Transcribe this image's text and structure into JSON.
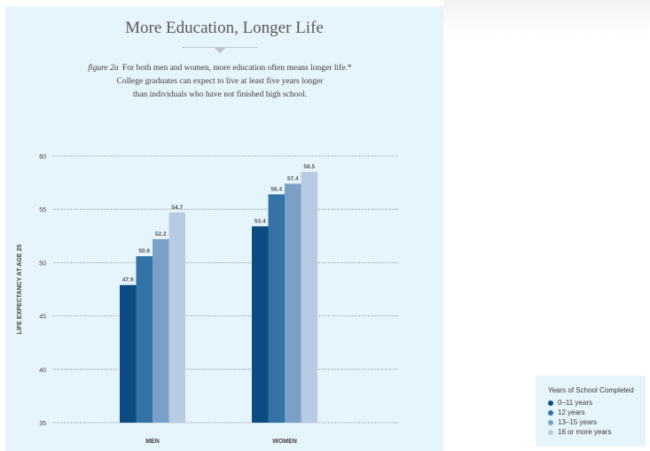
{
  "page": {
    "title": "More Education, Longer Life",
    "caption_figure_label": "figure 2a",
    "caption_lines": [
      "For both men and women, more education often means longer life.*",
      "College graduates can expect to live at least five years longer",
      "than individuals who have not finished high school."
    ],
    "panel_color": "#e6f4fb"
  },
  "chart_data": {
    "type": "bar",
    "title": "More Education, Longer Life",
    "xlabel": "",
    "ylabel": "LIFE EXPECTANCY AT AGE 25",
    "ylim": [
      35,
      60
    ],
    "yticks": [
      35,
      40,
      45,
      50,
      55,
      60
    ],
    "categories": [
      "MEN",
      "WOMEN"
    ],
    "grid": true,
    "legend_title": "Years of School Completed",
    "legend_position": "bottom-right",
    "series": [
      {
        "name": "0–11 years",
        "color": "#0c4c82",
        "values": [
          47.9,
          53.4
        ]
      },
      {
        "name": "12 years",
        "color": "#3473a6",
        "values": [
          50.6,
          56.4
        ]
      },
      {
        "name": "13–15 years",
        "color": "#7aa0c8",
        "values": [
          52.2,
          57.4
        ]
      },
      {
        "name": "16 or more years",
        "color": "#b9cbe3",
        "values": [
          54.7,
          58.5
        ]
      }
    ],
    "value_labels": [
      [
        "47.9",
        "53.4"
      ],
      [
        "50.6",
        "56.4"
      ],
      [
        "52.2",
        "57.4"
      ],
      [
        "54.7",
        "58.5"
      ]
    ]
  }
}
